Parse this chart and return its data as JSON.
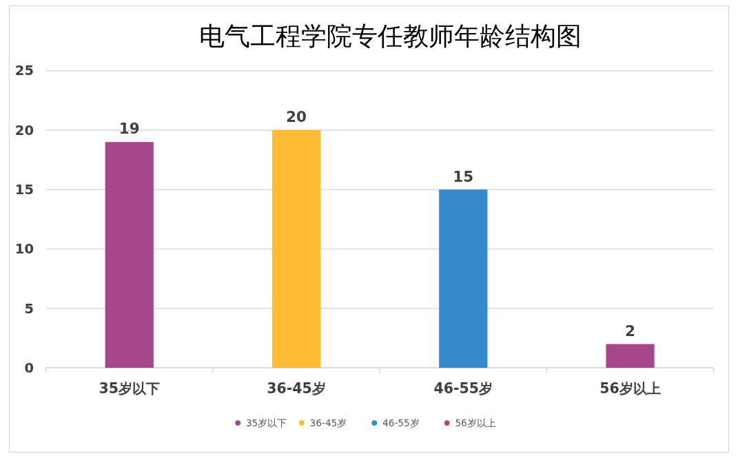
{
  "chart_data": {
    "type": "bar",
    "title": "电气工程学院专任教师年龄结构图",
    "categories": [
      "35岁以下",
      "36-45岁",
      "46-55岁",
      "56岁以上"
    ],
    "series": [
      {
        "name": "35岁以下",
        "color": "#a6478b",
        "values": [
          19,
          null,
          null,
          null
        ]
      },
      {
        "name": "36-45岁",
        "color": "#ffbb33",
        "values": [
          null,
          20,
          null,
          null
        ]
      },
      {
        "name": "46-55岁",
        "color": "#358acb",
        "values": [
          null,
          null,
          15,
          null
        ]
      },
      {
        "name": "56岁以上",
        "color": "#a6478b",
        "values": [
          null,
          null,
          null,
          2
        ]
      }
    ],
    "ylim": [
      0,
      25
    ],
    "yticks": [
      0,
      5,
      10,
      15,
      20,
      25
    ],
    "grid": "y",
    "data_labels": true,
    "legend": "bottom"
  }
}
